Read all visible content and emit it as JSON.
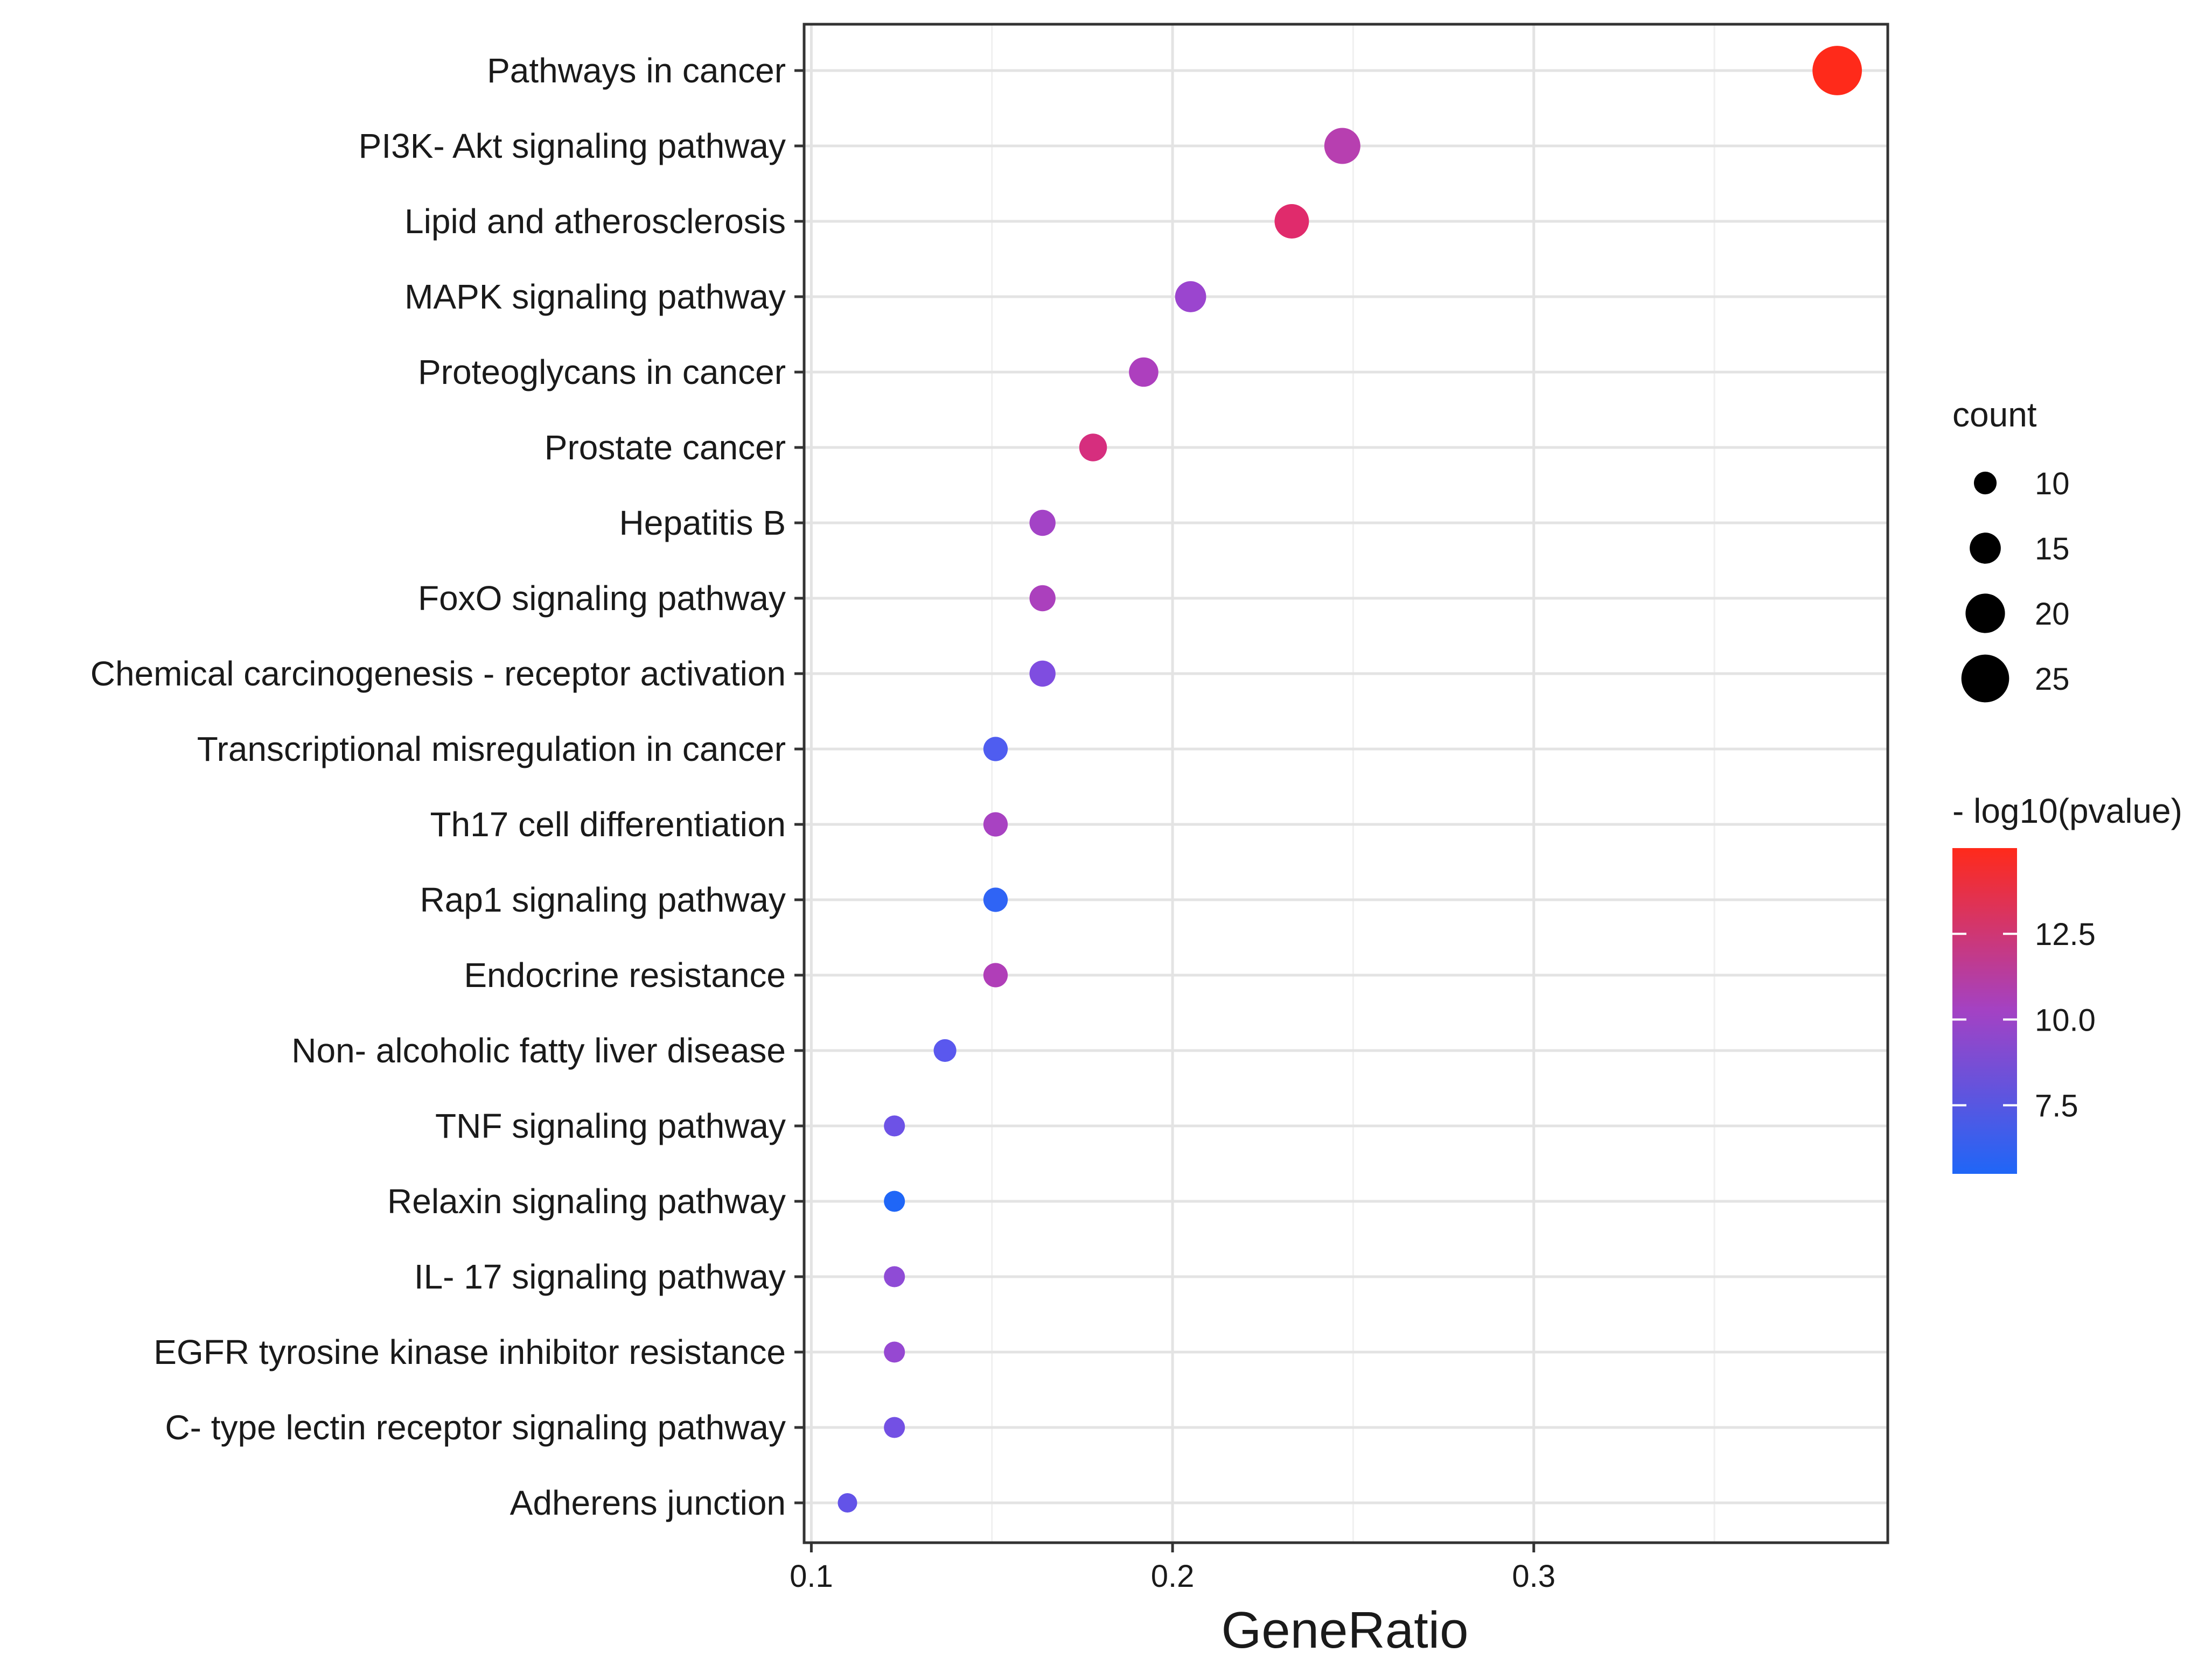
{
  "chart_data": {
    "type": "scatter",
    "subtype": "dot-plot",
    "xlabel": "GeneRatio",
    "ylabel": "",
    "xlim": [
      0.098,
      0.398
    ],
    "x_ticks": [
      {
        "value": 0.1,
        "label": "0.1"
      },
      {
        "value": 0.2,
        "label": "0.2"
      },
      {
        "value": 0.3,
        "label": "0.3"
      }
    ],
    "grid": true,
    "points": [
      {
        "term": "Pathways in cancer",
        "gene_ratio": 0.384,
        "count": 26,
        "neg_log10_p": 15.0,
        "color": "#ff2a1a"
      },
      {
        "term": "PI3K- Akt signaling pathway",
        "gene_ratio": 0.247,
        "count": 18,
        "neg_log10_p": 9.2,
        "color": "#b73fb0"
      },
      {
        "term": "Lipid and atherosclerosis",
        "gene_ratio": 0.233,
        "count": 17,
        "neg_log10_p": 12.3,
        "color": "#e02b6c"
      },
      {
        "term": "MAPK signaling pathway",
        "gene_ratio": 0.205,
        "count": 15,
        "neg_log10_p": 7.9,
        "color": "#9b45cf"
      },
      {
        "term": "Proteoglycans in cancer",
        "gene_ratio": 0.192,
        "count": 14,
        "neg_log10_p": 8.9,
        "color": "#ad3fbe"
      },
      {
        "term": "Prostate cancer",
        "gene_ratio": 0.178,
        "count": 13,
        "neg_log10_p": 11.6,
        "color": "#d62e7e"
      },
      {
        "term": "Hepatitis B",
        "gene_ratio": 0.164,
        "count": 12,
        "neg_log10_p": 8.4,
        "color": "#a343c6"
      },
      {
        "term": "FoxO signaling pathway",
        "gene_ratio": 0.164,
        "count": 12,
        "neg_log10_p": 8.8,
        "color": "#ab40bd"
      },
      {
        "term": "Chemical carcinogenesis -  receptor activation",
        "gene_ratio": 0.164,
        "count": 12,
        "neg_log10_p": 7.2,
        "color": "#7f4de0"
      },
      {
        "term": "Transcriptional misregulation in cancer",
        "gene_ratio": 0.151,
        "count": 11,
        "neg_log10_p": 6.2,
        "color": "#4f5df0"
      },
      {
        "term": "Th17 cell differentiation",
        "gene_ratio": 0.151,
        "count": 11,
        "neg_log10_p": 8.6,
        "color": "#a842c2"
      },
      {
        "term": "Rap1 signaling pathway",
        "gene_ratio": 0.151,
        "count": 11,
        "neg_log10_p": 5.7,
        "color": "#2f64f5"
      },
      {
        "term": "Endocrine resistance",
        "gene_ratio": 0.151,
        "count": 11,
        "neg_log10_p": 9.0,
        "color": "#b03eb8"
      },
      {
        "term": "Non- alcoholic fatty liver disease",
        "gene_ratio": 0.137,
        "count": 10,
        "neg_log10_p": 6.4,
        "color": "#5a58ee"
      },
      {
        "term": "TNF signaling pathway",
        "gene_ratio": 0.123,
        "count": 9,
        "neg_log10_p": 6.8,
        "color": "#6d52e6"
      },
      {
        "term": "Relaxin signaling pathway",
        "gene_ratio": 0.123,
        "count": 9,
        "neg_log10_p": 5.5,
        "color": "#1f66f7"
      },
      {
        "term": "IL- 17 signaling pathway",
        "gene_ratio": 0.123,
        "count": 9,
        "neg_log10_p": 7.6,
        "color": "#8f4bd6"
      },
      {
        "term": "EGFR tyrosine kinase inhibitor resistance",
        "gene_ratio": 0.123,
        "count": 9,
        "neg_log10_p": 7.9,
        "color": "#9648d2"
      },
      {
        "term": "C- type lectin receptor signaling pathway",
        "gene_ratio": 0.123,
        "count": 9,
        "neg_log10_p": 6.9,
        "color": "#7350e4"
      },
      {
        "term": "Adherens junction",
        "gene_ratio": 0.11,
        "count": 8,
        "neg_log10_p": 6.6,
        "color": "#6353e8"
      }
    ],
    "legend_size": {
      "title": "count",
      "entries": [
        {
          "value": 10,
          "label": "10"
        },
        {
          "value": 15,
          "label": "15"
        },
        {
          "value": 20,
          "label": "20"
        },
        {
          "value": 25,
          "label": "25"
        }
      ]
    },
    "legend_color": {
      "title": "- log10(pvalue)",
      "range": [
        5.5,
        15.0
      ],
      "low_color": "#1f66f7",
      "mid_color": "#a342c4",
      "high_color": "#ff2a1a",
      "ticks": [
        {
          "value": 7.5,
          "label": "7.5"
        },
        {
          "value": 10.0,
          "label": "10.0"
        },
        {
          "value": 12.5,
          "label": "12.5"
        }
      ]
    },
    "legend_position": "right"
  }
}
